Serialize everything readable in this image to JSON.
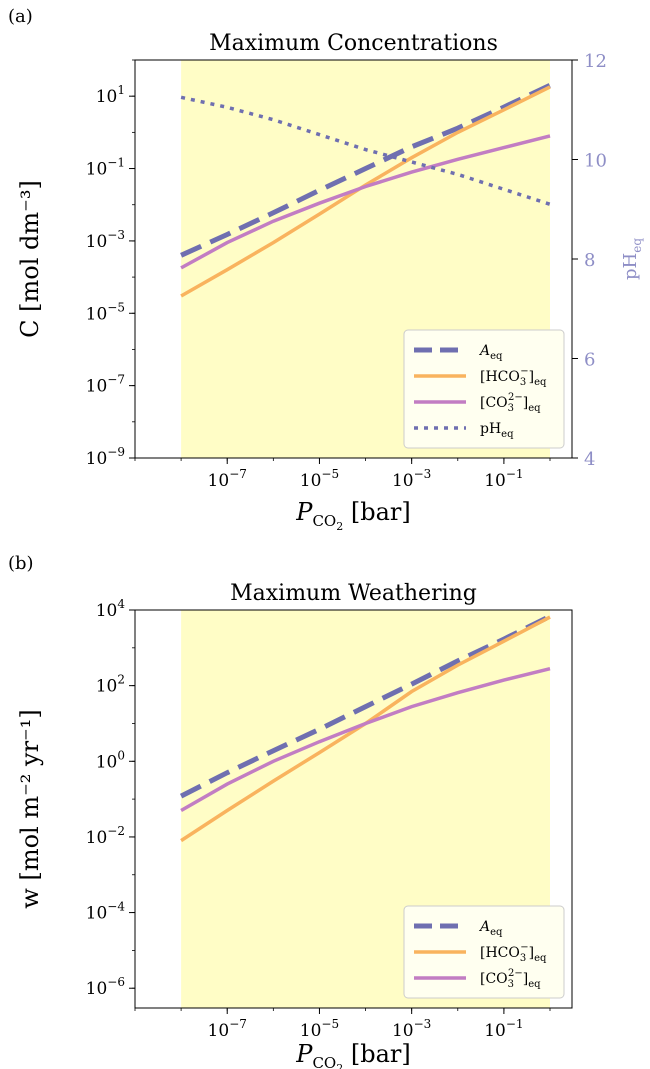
{
  "colors": {
    "shade": "#fffdc6",
    "a_eq": "#6f6fb0",
    "hco3": "#f9b35e",
    "co3": "#c27dc3",
    "ph": "#6f6fb0",
    "ph_axis": "#8e8ec6"
  },
  "chart_data": [
    {
      "panel_label": "(a)",
      "type": "line",
      "title": "Maximum Concentrations",
      "xlabel": {
        "main": "P",
        "sub": "CO",
        "sub2": "2",
        "unit": " [bar]"
      },
      "ylabel": "C [mol dm⁻³]",
      "ylabel_right": "pH",
      "ylabel_right_sub": "eq",
      "xscale": "log",
      "yscale": "log",
      "xlim": [
        1e-09,
        3
      ],
      "ylim": [
        1e-09,
        100
      ],
      "ylim_right": [
        4,
        12
      ],
      "xticks": [
        1e-07,
        1e-05,
        0.001,
        0.1
      ],
      "xtick_labels": [
        {
          "b": "10",
          "e": "−7"
        },
        {
          "b": "10",
          "e": "−5"
        },
        {
          "b": "10",
          "e": "−3"
        },
        {
          "b": "10",
          "e": "−1"
        }
      ],
      "yticks": [
        1e-09,
        1e-07,
        1e-05,
        0.001,
        0.1,
        10
      ],
      "ytick_labels": [
        {
          "b": "10",
          "e": "−9"
        },
        {
          "b": "10",
          "e": "−7"
        },
        {
          "b": "10",
          "e": "−5"
        },
        {
          "b": "10",
          "e": "−3"
        },
        {
          "b": "10",
          "e": "−1"
        },
        {
          "b": "10",
          "e": "1"
        }
      ],
      "yticks_right": [
        4,
        6,
        8,
        10,
        12
      ],
      "ytick_labels_right": [
        "4",
        "6",
        "8",
        "10",
        "12"
      ],
      "shaded_region": [
        1e-08,
        1
      ],
      "legend": "lower-right",
      "x": [
        1e-08,
        1e-07,
        1e-06,
        1e-05,
        0.0001,
        0.001,
        0.01,
        0.1,
        1
      ],
      "series": [
        {
          "name": "A",
          "name_sub": "eq",
          "style": "dashed",
          "axis": "left",
          "values": [
            0.0004,
            0.0015,
            0.006,
            0.025,
            0.1,
            0.4,
            1.3,
            5,
            20
          ]
        },
        {
          "name": "[HCO3−]",
          "name_sub": "eq",
          "style": "solid",
          "axis": "left",
          "values": [
            3e-05,
            0.00016,
            0.0009,
            0.0055,
            0.035,
            0.2,
            1.0,
            4.2,
            18
          ]
        },
        {
          "name": "[CO32−]",
          "name_sub": "eq",
          "style": "solid",
          "axis": "left",
          "values": [
            0.00018,
            0.0009,
            0.0035,
            0.011,
            0.032,
            0.08,
            0.18,
            0.38,
            0.8
          ]
        },
        {
          "name": "pH",
          "name_sub": "eq",
          "style": "dotted",
          "axis": "right",
          "values": [
            11.25,
            11.05,
            10.8,
            10.5,
            10.2,
            9.95,
            9.7,
            9.4,
            9.1
          ]
        }
      ]
    },
    {
      "panel_label": "(b)",
      "type": "line",
      "title": "Maximum Weathering",
      "xlabel": {
        "main": "P",
        "sub": "CO",
        "sub2": "2",
        "unit": " [bar]"
      },
      "ylabel": "w [mol m⁻² yr⁻¹]",
      "xscale": "log",
      "yscale": "log",
      "xlim": [
        1e-09,
        3
      ],
      "ylim": [
        3e-07,
        10000
      ],
      "xticks": [
        1e-07,
        1e-05,
        0.001,
        0.1
      ],
      "xtick_labels": [
        {
          "b": "10",
          "e": "−7"
        },
        {
          "b": "10",
          "e": "−5"
        },
        {
          "b": "10",
          "e": "−3"
        },
        {
          "b": "10",
          "e": "−1"
        }
      ],
      "yticks": [
        1e-06,
        0.0001,
        0.01,
        1,
        100,
        10000
      ],
      "ytick_labels": [
        {
          "b": "10",
          "e": "−6"
        },
        {
          "b": "10",
          "e": "−4"
        },
        {
          "b": "10",
          "e": "−2"
        },
        {
          "b": "10",
          "e": "0"
        },
        {
          "b": "10",
          "e": "2"
        },
        {
          "b": "10",
          "e": "4"
        }
      ],
      "shaded_region": [
        1e-08,
        1
      ],
      "legend": "lower-right",
      "x": [
        1e-08,
        1e-07,
        1e-06,
        1e-05,
        0.0001,
        0.001,
        0.01,
        0.1,
        1
      ],
      "series": [
        {
          "name": "A",
          "name_sub": "eq",
          "style": "dashed",
          "values": [
            0.12,
            0.5,
            1.9,
            7,
            28,
            110,
            450,
            1700,
            6800
          ]
        },
        {
          "name": "[HCO3−]",
          "name_sub": "eq",
          "style": "solid",
          "values": [
            0.008,
            0.05,
            0.3,
            1.7,
            10,
            70,
            350,
            1500,
            6500
          ]
        },
        {
          "name": "[CO32−]",
          "name_sub": "eq",
          "style": "solid",
          "values": [
            0.05,
            0.25,
            1.0,
            3.3,
            10,
            28,
            65,
            140,
            280
          ]
        }
      ]
    }
  ]
}
